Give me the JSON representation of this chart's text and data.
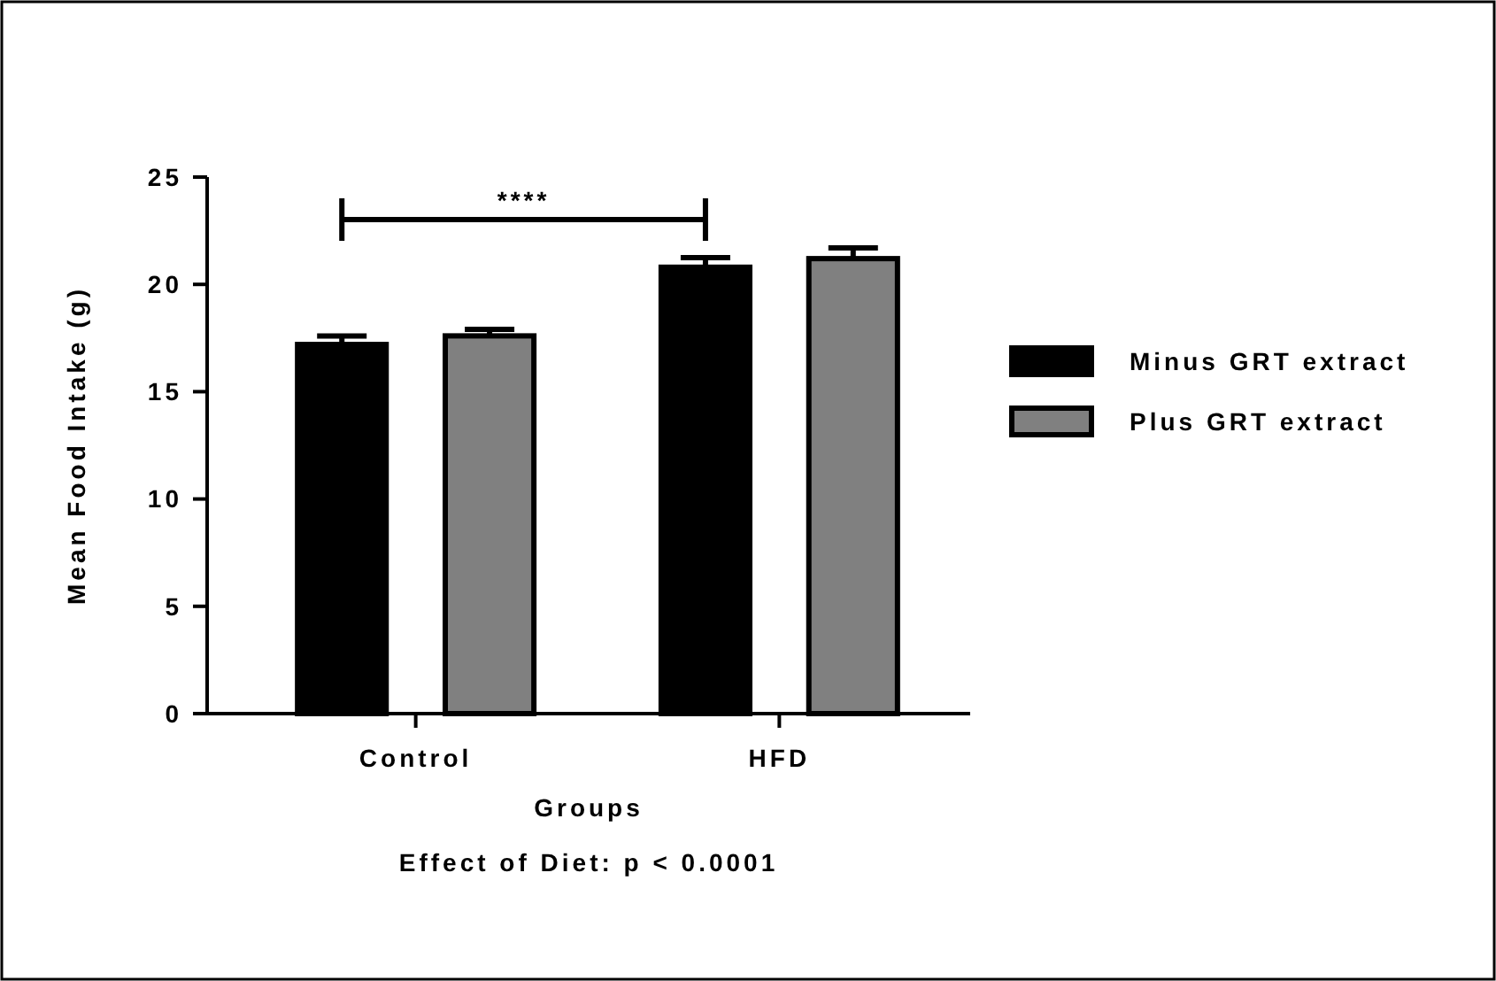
{
  "chart_data": {
    "type": "bar",
    "xlabel": "Groups",
    "ylabel": "Mean Food Intake (g)",
    "categories": [
      "Control",
      "HFD"
    ],
    "series": [
      {
        "name": "Minus GRT extract",
        "color": "#000000",
        "values": [
          17.2,
          20.8
        ],
        "errors": [
          0.4,
          0.45
        ]
      },
      {
        "name": "Plus GRT extract",
        "color": "#808080",
        "values": [
          17.6,
          21.2
        ],
        "errors": [
          0.3,
          0.5
        ]
      }
    ],
    "ylim": [
      0,
      25
    ],
    "yticks": [
      0,
      5,
      10,
      15,
      20,
      25
    ],
    "grid": false,
    "legend": "right",
    "annotations": [
      "****",
      "Effect of Diet: p < 0.0001"
    ]
  }
}
